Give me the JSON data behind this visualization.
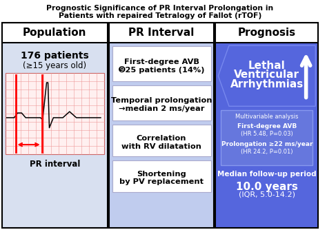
{
  "title_line1": "Prognostic Significance of PR Interval Prolongation in",
  "title_line2": "Patients with repaired Tetralogy of Fallot (rTOF)",
  "col1_header": "Population",
  "col2_header": "PR Interval",
  "col3_header": "Prognosis",
  "col1_bg": "#d8e0f0",
  "col2_bg": "#c0ccee",
  "col3_bg": "#5566dd",
  "header_bg": "#ffffff",
  "col3_header_bg": "#ffffff",
  "pop_text1": "176 patients",
  "pop_text2": "(≥15 years old)",
  "pr_label": "PR interval",
  "box1_line1": "First-degree AVB",
  "box1_line2": "➒25 patients (14%)",
  "box2_line1": "Temporal prolongation",
  "box2_line2": "→median 2 ms/year",
  "box3_line1": "Correlation",
  "box3_line2": "with RV dilatation",
  "box4_line1": "Shortening",
  "box4_line2": "by PV replacement",
  "lethal_line1": "Lethal",
  "lethal_line2": "Ventricular",
  "lethal_line3": "Arrhythmias",
  "multi_title": "Multivariable analysis",
  "multi_line1": "First-degree AVB",
  "multi_line2": "(HR 5.48, P=0.03)",
  "multi_line3": "Prolongation ≥22 ms/year",
  "multi_line4": "(HR 24.2, P=0.01)",
  "followup_line1": "Median follow-up period",
  "followup_line2": "10.0 years",
  "followup_line3": "(IQR, 5.0-14.2)",
  "background_color": "#ffffff"
}
